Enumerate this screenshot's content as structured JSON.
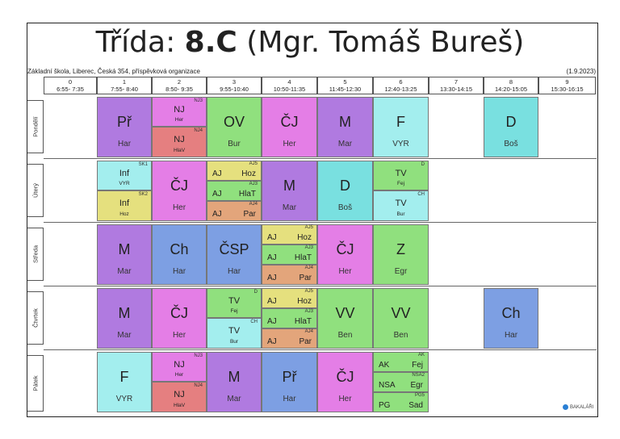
{
  "title_prefix": "Třída:",
  "title_class": "8.C",
  "title_teacher": "(Mgr. Tomáš Bureš)",
  "school": "Základní škola, Liberec, Česká 354, příspěvková organizace",
  "date": "(1.9.2023)",
  "periods": [
    {
      "num": "0",
      "time": "6:55- 7:35"
    },
    {
      "num": "1",
      "time": "7:55- 8:40"
    },
    {
      "num": "2",
      "time": "8:50- 9:35"
    },
    {
      "num": "3",
      "time": "9:55-10:40"
    },
    {
      "num": "4",
      "time": "10:50-11:35"
    },
    {
      "num": "5",
      "time": "11:45-12:30"
    },
    {
      "num": "6",
      "time": "12:40-13:25"
    },
    {
      "num": "7",
      "time": "13:30-14:15"
    },
    {
      "num": "8",
      "time": "14:20-15:05"
    },
    {
      "num": "9",
      "time": "15:30-16:15"
    }
  ],
  "days": [
    "Pondělí",
    "Úterý",
    "Středa",
    "Čtvrtek",
    "Pátek"
  ],
  "mon": {
    "p1": {
      "subj": "Př",
      "teacher": "Har"
    },
    "p2": {
      "a_grp": "NJ3",
      "a_subj": "NJ",
      "a_t": "Her",
      "b_grp": "NJ4",
      "b_subj": "NJ",
      "b_t": "HlaV"
    },
    "p3": {
      "subj": "OV",
      "teacher": "Bur"
    },
    "p4": {
      "subj": "ČJ",
      "teacher": "Her"
    },
    "p5": {
      "subj": "M",
      "teacher": "Mar"
    },
    "p6": {
      "subj": "F",
      "teacher": "VYR"
    },
    "p8": {
      "subj": "D",
      "teacher": "Boš"
    }
  },
  "tue": {
    "p1": {
      "a_grp": "SK1",
      "a_subj": "Inf",
      "a_t": "VYR",
      "b_grp": "SK2",
      "b_subj": "Inf",
      "b_t": "Hoz"
    },
    "p2": {
      "subj": "ČJ",
      "teacher": "Her"
    },
    "p3": {
      "a_grp": "AJ5",
      "a_l": "AJ",
      "a_r": "Hoz",
      "b_grp": "AJ3",
      "b_l": "AJ",
      "b_r": "HlaT",
      "c_grp": "AJ4",
      "c_l": "AJ",
      "c_r": "Par"
    },
    "p4": {
      "subj": "M",
      "teacher": "Mar"
    },
    "p5": {
      "subj": "D",
      "teacher": "Boš"
    },
    "p6": {
      "a_grp": "D",
      "a_subj": "TV",
      "a_t": "Fej",
      "b_grp": "CH",
      "b_subj": "TV",
      "b_t": "Bur"
    }
  },
  "wed": {
    "p1": {
      "subj": "M",
      "teacher": "Mar"
    },
    "p2": {
      "subj": "Ch",
      "teacher": "Har"
    },
    "p3": {
      "subj": "ČSP",
      "teacher": "Har"
    },
    "p4": {
      "a_grp": "AJ5",
      "a_l": "AJ",
      "a_r": "Hoz",
      "b_grp": "AJ3",
      "b_l": "AJ",
      "b_r": "HlaT",
      "c_grp": "AJ4",
      "c_l": "AJ",
      "c_r": "Par"
    },
    "p5": {
      "subj": "ČJ",
      "teacher": "Her"
    },
    "p6": {
      "subj": "Z",
      "teacher": "Egr"
    }
  },
  "thu": {
    "p1": {
      "subj": "M",
      "teacher": "Mar"
    },
    "p2": {
      "subj": "ČJ",
      "teacher": "Her"
    },
    "p3": {
      "a_grp": "D",
      "a_subj": "TV",
      "a_t": "Fej",
      "b_grp": "CH",
      "b_subj": "TV",
      "b_t": "Bur"
    },
    "p4": {
      "a_grp": "AJ5",
      "a_l": "AJ",
      "a_r": "Hoz",
      "b_grp": "AJ3",
      "b_l": "AJ",
      "b_r": "HlaT",
      "c_grp": "AJ4",
      "c_l": "AJ",
      "c_r": "Par"
    },
    "p5": {
      "subj": "VV",
      "teacher": "Ben"
    },
    "p6": {
      "subj": "VV",
      "teacher": "Ben"
    },
    "p8": {
      "subj": "Ch",
      "teacher": "Har"
    }
  },
  "fri": {
    "p1": {
      "subj": "F",
      "teacher": "VYR"
    },
    "p2": {
      "a_grp": "NJ3",
      "a_subj": "NJ",
      "a_t": "Her",
      "b_grp": "NJ4",
      "b_subj": "NJ",
      "b_t": "HlaV"
    },
    "p3": {
      "subj": "M",
      "teacher": "Mar"
    },
    "p4": {
      "subj": "Př",
      "teacher": "Har"
    },
    "p5": {
      "subj": "ČJ",
      "teacher": "Her"
    },
    "p6": {
      "a_grp": "AK",
      "a_l": "AK",
      "a_r": "Fej",
      "b_grp": "NSA2",
      "b_l": "NSA",
      "b_r": "Egr",
      "c_grp": "PG5",
      "c_l": "PG",
      "c_r": "Sad"
    }
  },
  "logo": "BAKALÁŘI"
}
